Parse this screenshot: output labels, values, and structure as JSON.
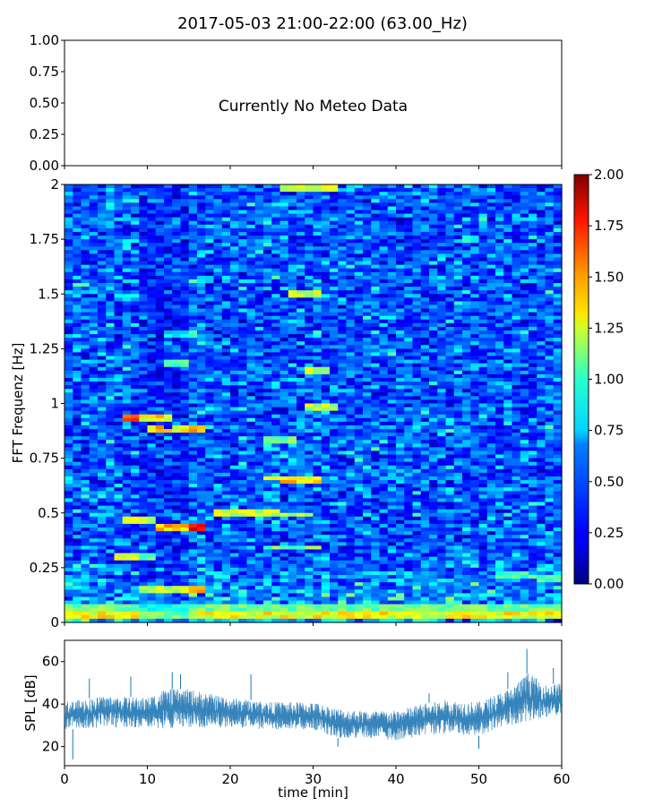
{
  "figure_title": "2017-05-03 21:00-22:00 (63.00_Hz)",
  "chart_data": [
    {
      "type": "line",
      "panel": "meteo",
      "annotation": "Currently No Meteo Data",
      "ylim": [
        0,
        1
      ],
      "y_ticks": [
        "0.00",
        "0.25",
        "0.50",
        "0.75",
        "1.00"
      ],
      "series": []
    },
    {
      "type": "heatmap",
      "panel": "spectrogram",
      "ylabel": "FFT Frequenz [Hz]",
      "xlim": [
        0,
        60
      ],
      "ylim": [
        0,
        2
      ],
      "y_ticks": [
        "0",
        "0.25",
        "0.5",
        "0.75",
        "1",
        "1.25",
        "1.5",
        "1.75",
        "2"
      ],
      "colormap": "jet",
      "colorbar": {
        "range": [
          0,
          2
        ],
        "ticks": [
          "0.00",
          "0.25",
          "0.50",
          "0.75",
          "1.00",
          "1.25",
          "1.50",
          "1.75",
          "2.00"
        ]
      },
      "baseline_level": 0.3,
      "features": [
        {
          "t": [
            7,
            13
          ],
          "f": [
            0.93,
            0.93
          ],
          "level": 1.8
        },
        {
          "t": [
            10,
            13
          ],
          "f": [
            0.89,
            0.87
          ],
          "level": 1.9
        },
        {
          "t": [
            13,
            17
          ],
          "f": [
            0.89,
            0.88
          ],
          "level": 1.7
        },
        {
          "t": [
            7,
            11
          ],
          "f": [
            0.46,
            0.46
          ],
          "level": 1.5
        },
        {
          "t": [
            11,
            17
          ],
          "f": [
            0.43,
            0.43
          ],
          "level": 1.9
        },
        {
          "t": [
            6,
            11
          ],
          "f": [
            0.3,
            0.3
          ],
          "level": 1.4
        },
        {
          "t": [
            9,
            17
          ],
          "f": [
            0.15,
            0.15
          ],
          "level": 1.6
        },
        {
          "t": [
            12,
            15
          ],
          "f": [
            1.18,
            1.18
          ],
          "level": 1.3
        },
        {
          "t": [
            12,
            16
          ],
          "f": [
            1.31,
            1.31
          ],
          "level": 1.0
        },
        {
          "t": [
            18,
            30
          ],
          "f": [
            0.5,
            0.49
          ],
          "level": 1.3
        },
        {
          "t": [
            24,
            31
          ],
          "f": [
            0.66,
            0.65
          ],
          "level": 1.5
        },
        {
          "t": [
            24,
            28
          ],
          "f": [
            0.83,
            0.83
          ],
          "level": 1.1
        },
        {
          "t": [
            29,
            33
          ],
          "f": [
            0.98,
            0.98
          ],
          "level": 1.3
        },
        {
          "t": [
            29,
            32
          ],
          "f": [
            1.15,
            1.15
          ],
          "level": 1.3
        },
        {
          "t": [
            27,
            31
          ],
          "f": [
            1.5,
            1.5
          ],
          "level": 1.3
        },
        {
          "t": [
            26,
            33
          ],
          "f": [
            1.99,
            1.99
          ],
          "level": 1.3
        },
        {
          "t": [
            24,
            31
          ],
          "f": [
            0.34,
            0.34
          ],
          "level": 1.1
        },
        {
          "t": [
            52,
            60
          ],
          "f": [
            0.22,
            0.2
          ],
          "level": 1.0
        },
        {
          "t": [
            0,
            60
          ],
          "f": [
            0.03,
            0.03
          ],
          "level": 1.4
        },
        {
          "t": [
            0,
            60
          ],
          "f": [
            0.07,
            0.07
          ],
          "level": 1.1
        }
      ]
    },
    {
      "type": "line",
      "panel": "spl",
      "xlabel": "time [min]",
      "ylabel": "SPL [dB]",
      "xlim": [
        0,
        60
      ],
      "ylim": [
        11,
        70
      ],
      "x_ticks": [
        "0",
        "10",
        "20",
        "30",
        "40",
        "50",
        "60"
      ],
      "y_ticks": [
        "20",
        "40",
        "60"
      ],
      "color": "#1f77b4",
      "envelope_min": {
        "x": [
          0,
          5,
          10,
          12,
          15,
          20,
          25,
          30,
          33,
          36,
          40,
          43,
          46,
          50,
          54,
          56,
          58,
          60
        ],
        "y": [
          28,
          29,
          29,
          28,
          29,
          29,
          28,
          28,
          24,
          24,
          23,
          25,
          26,
          25,
          30,
          32,
          34,
          35
        ]
      },
      "envelope_max": {
        "x": [
          0,
          5,
          10,
          12,
          15,
          20,
          25,
          30,
          33,
          36,
          40,
          43,
          46,
          50,
          54,
          56,
          58,
          60
        ],
        "y": [
          41,
          44,
          43,
          47,
          47,
          43,
          41,
          41,
          38,
          37,
          37,
          40,
          42,
          41,
          48,
          55,
          49,
          50
        ]
      },
      "spikes": {
        "x": [
          1,
          3,
          8,
          13,
          14,
          22.5,
          33,
          44,
          50,
          53.5,
          55.8,
          59
        ],
        "y": [
          14,
          52,
          53,
          55,
          54,
          54,
          20,
          45,
          19,
          55,
          66,
          57
        ]
      }
    }
  ]
}
